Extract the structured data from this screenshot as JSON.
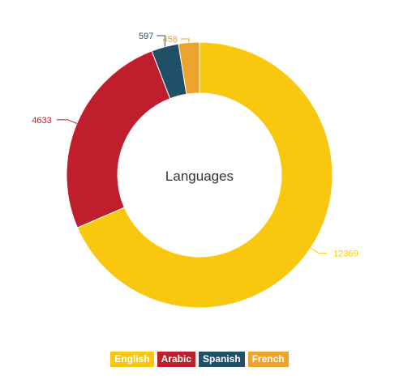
{
  "chart_data": {
    "type": "pie",
    "variant": "donut",
    "center_label": "Languages",
    "categories": [
      "English",
      "Arabic",
      "Spanish",
      "French"
    ],
    "values": [
      12369,
      4633,
      597,
      458
    ],
    "colors": [
      "#f9c80e",
      "#bf1e2d",
      "#1f5068",
      "#eda42e"
    ],
    "legend_position": "bottom-center"
  }
}
